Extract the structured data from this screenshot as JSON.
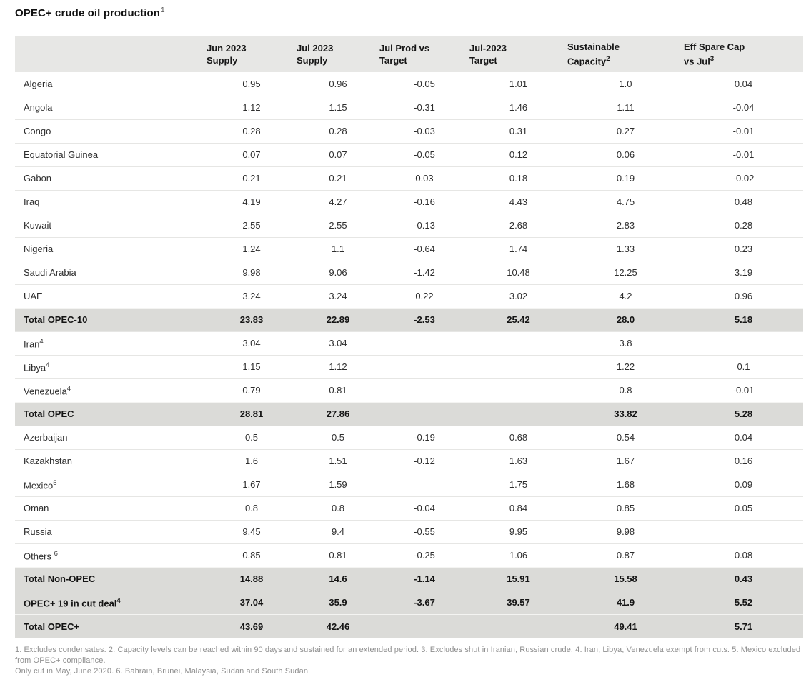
{
  "title": {
    "text": "OPEC+ crude oil production",
    "sup": "1"
  },
  "chart_data": {
    "type": "table",
    "title": "OPEC+ crude oil production",
    "columns": [
      {
        "key": "country",
        "line1": "",
        "line2": "",
        "sup": ""
      },
      {
        "key": "jun-2023-supply",
        "line1": "Jun 2023",
        "line2": "Supply",
        "sup": ""
      },
      {
        "key": "jul-2023-supply",
        "line1": "Jul 2023",
        "line2": "Supply",
        "sup": ""
      },
      {
        "key": "jul-prod-vs-target",
        "line1": "Jul Prod vs",
        "line2": "Target",
        "sup": ""
      },
      {
        "key": "jul-2023-target",
        "line1": "Jul-2023",
        "line2": "Target",
        "sup": ""
      },
      {
        "key": "sustainable-capacity",
        "line1": "Sustainable",
        "line2": "Capacity",
        "sup": "2"
      },
      {
        "key": "eff-spare-cap-vs-jul",
        "line1": "Eff Spare Cap",
        "line2": "vs Jul",
        "sup": "3"
      }
    ],
    "rows": [
      {
        "name": "Algeria",
        "sup": "",
        "total": false,
        "values": [
          "0.95",
          "0.96",
          "-0.05",
          "1.01",
          "1.0",
          "0.04"
        ]
      },
      {
        "name": "Angola",
        "sup": "",
        "total": false,
        "values": [
          "1.12",
          "1.15",
          "-0.31",
          "1.46",
          "1.11",
          "-0.04"
        ]
      },
      {
        "name": "Congo",
        "sup": "",
        "total": false,
        "values": [
          "0.28",
          "0.28",
          "-0.03",
          "0.31",
          "0.27",
          "-0.01"
        ]
      },
      {
        "name": "Equatorial Guinea",
        "sup": "",
        "total": false,
        "values": [
          "0.07",
          "0.07",
          "-0.05",
          "0.12",
          "0.06",
          "-0.01"
        ]
      },
      {
        "name": "Gabon",
        "sup": "",
        "total": false,
        "values": [
          "0.21",
          "0.21",
          "0.03",
          "0.18",
          "0.19",
          "-0.02"
        ]
      },
      {
        "name": "Iraq",
        "sup": "",
        "total": false,
        "values": [
          "4.19",
          "4.27",
          "-0.16",
          "4.43",
          "4.75",
          "0.48"
        ]
      },
      {
        "name": "Kuwait",
        "sup": "",
        "total": false,
        "values": [
          "2.55",
          "2.55",
          "-0.13",
          "2.68",
          "2.83",
          "0.28"
        ]
      },
      {
        "name": "Nigeria",
        "sup": "",
        "total": false,
        "values": [
          "1.24",
          "1.1",
          "-0.64",
          "1.74",
          "1.33",
          "0.23"
        ]
      },
      {
        "name": "Saudi Arabia",
        "sup": "",
        "total": false,
        "values": [
          "9.98",
          "9.06",
          "-1.42",
          "10.48",
          "12.25",
          "3.19"
        ]
      },
      {
        "name": "UAE",
        "sup": "",
        "total": false,
        "values": [
          "3.24",
          "3.24",
          "0.22",
          "3.02",
          "4.2",
          "0.96"
        ]
      },
      {
        "name": "Total OPEC-10",
        "sup": "",
        "total": true,
        "values": [
          "23.83",
          "22.89",
          "-2.53",
          "25.42",
          "28.0",
          "5.18"
        ]
      },
      {
        "name": "Iran",
        "sup": "4",
        "total": false,
        "values": [
          "3.04",
          "3.04",
          "",
          "",
          "3.8",
          ""
        ]
      },
      {
        "name": "Libya",
        "sup": "4",
        "total": false,
        "values": [
          "1.15",
          "1.12",
          "",
          "",
          "1.22",
          "0.1"
        ]
      },
      {
        "name": "Venezuela",
        "sup": "4",
        "total": false,
        "values": [
          "0.79",
          "0.81",
          "",
          "",
          "0.8",
          "-0.01"
        ]
      },
      {
        "name": "Total OPEC",
        "sup": "",
        "total": true,
        "values": [
          "28.81",
          "27.86",
          "",
          "",
          "33.82",
          "5.28"
        ]
      },
      {
        "name": "Azerbaijan",
        "sup": "",
        "total": false,
        "values": [
          "0.5",
          "0.5",
          "-0.19",
          "0.68",
          "0.54",
          "0.04"
        ]
      },
      {
        "name": "Kazakhstan",
        "sup": "",
        "total": false,
        "values": [
          "1.6",
          "1.51",
          "-0.12",
          "1.63",
          "1.67",
          "0.16"
        ]
      },
      {
        "name": "Mexico",
        "sup": "5",
        "total": false,
        "values": [
          "1.67",
          "1.59",
          "",
          "1.75",
          "1.68",
          "0.09"
        ]
      },
      {
        "name": "Oman",
        "sup": "",
        "total": false,
        "values": [
          "0.8",
          "0.8",
          "-0.04",
          "0.84",
          "0.85",
          "0.05"
        ]
      },
      {
        "name": "Russia",
        "sup": "",
        "total": false,
        "values": [
          "9.45",
          "9.4",
          "-0.55",
          "9.95",
          "9.98",
          ""
        ]
      },
      {
        "name": "Others ",
        "sup": "6",
        "total": false,
        "values": [
          "0.85",
          "0.81",
          "-0.25",
          "1.06",
          "0.87",
          "0.08"
        ]
      },
      {
        "name": "Total Non-OPEC",
        "sup": "",
        "total": true,
        "values": [
          "14.88",
          "14.6",
          "-1.14",
          "15.91",
          "15.58",
          "0.43"
        ]
      },
      {
        "name": "OPEC+ 19 in cut deal",
        "sup": "4",
        "total": true,
        "values": [
          "37.04",
          "35.9",
          "-3.67",
          "39.57",
          "41.9",
          "5.52"
        ]
      },
      {
        "name": "Total OPEC+",
        "sup": "",
        "total": true,
        "values": [
          "43.69",
          "42.46",
          "",
          "",
          "49.41",
          "5.71"
        ]
      }
    ]
  },
  "footnotes": {
    "lines": [
      "1. Excludes condensates. 2. Capacity levels can be reached within 90 days and sustained for an extended period. 3. Excludes shut in Iranian, Russian crude. 4. Iran, Libya, Venezuela exempt from cuts. 5. Mexico excluded from OPEC+ compliance.",
      "Only cut in May, June 2020. 6. Bahrain, Brunei, Malaysia, Sudan and South Sudan."
    ]
  },
  "colors": {
    "header_bg": "#e7e7e5",
    "total_row_bg": "#dbdbd8",
    "row_border": "#e6e6e4",
    "text": "#1f1f1f",
    "footnote_text": "#8f8f8f"
  }
}
